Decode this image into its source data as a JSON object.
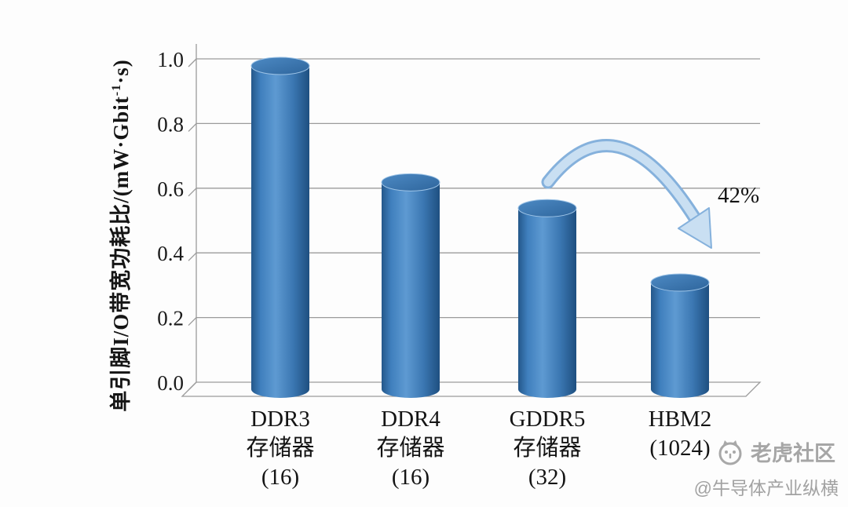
{
  "chart_data": {
    "type": "bar",
    "style": "3d-cylinders",
    "title": "",
    "ylabel": {
      "prefix": "单引脚I/O带宽功耗比/(mW·Gbit",
      "superscript": "-1",
      "suffix": "·s)"
    },
    "ylim": [
      0.0,
      1.0
    ],
    "yticks": [
      "0.0",
      "0.2",
      "0.4",
      "0.6",
      "0.8",
      "1.0"
    ],
    "grid": true,
    "legend": false,
    "bar_color": "#3a79b8",
    "categories": [
      {
        "id": "ddr3",
        "lines": [
          "DDR3",
          "存储器",
          "(16)"
        ],
        "value": 1.0
      },
      {
        "id": "ddr4",
        "lines": [
          "DDR4",
          "存储器",
          "(16)"
        ],
        "value": 0.64
      },
      {
        "id": "gddr5",
        "lines": [
          "GDDR5",
          "存储器",
          "(32)"
        ],
        "value": 0.56
      },
      {
        "id": "hbm2",
        "lines": [
          "HBM2",
          "(1024)"
        ],
        "value": 0.33
      }
    ],
    "annotation": {
      "label": "42%"
    }
  },
  "watermark": {
    "brand": "老虎社区",
    "handle": "@牛导体产业纵横"
  }
}
